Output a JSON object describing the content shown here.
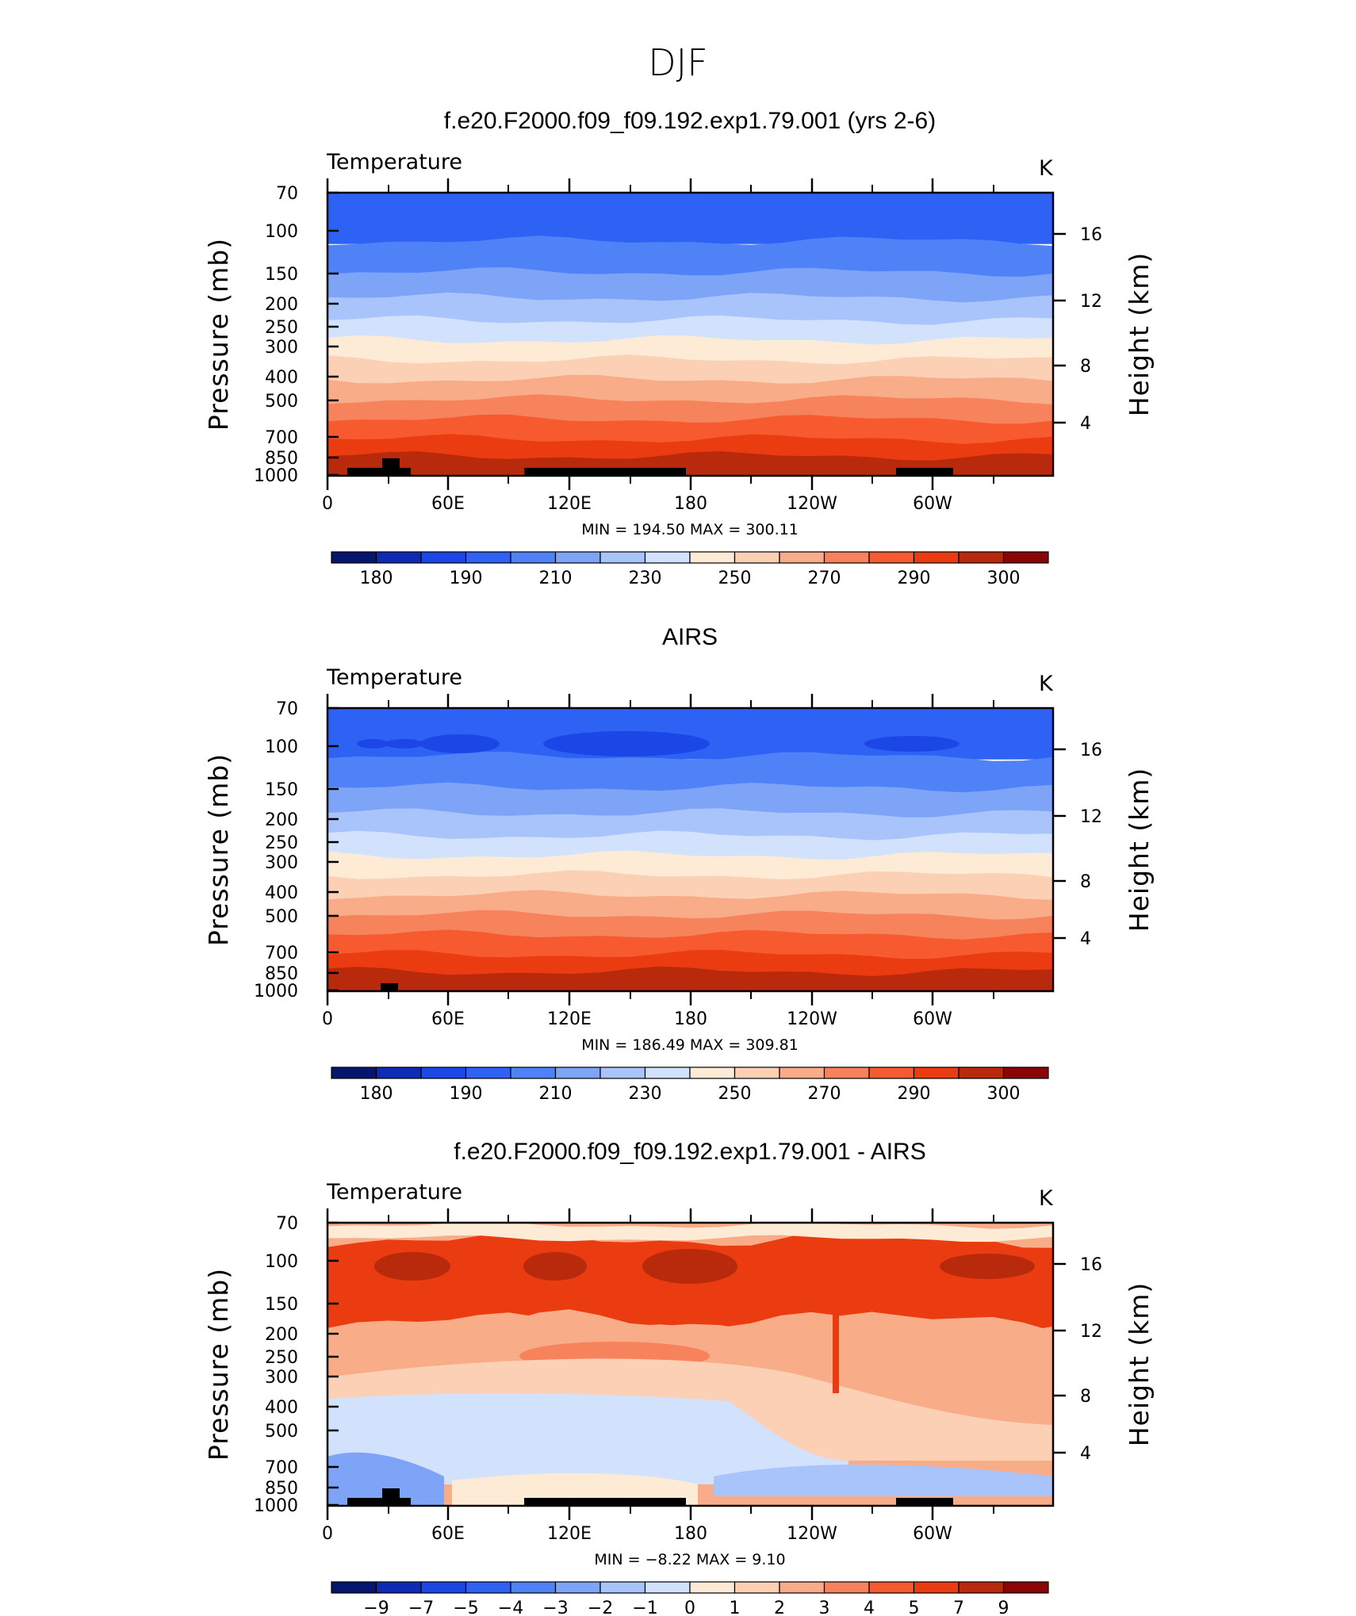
{
  "page": {
    "title": "DJF"
  },
  "colors": {
    "temp_palette": [
      "#06156e",
      "#0f2bb5",
      "#1b47e6",
      "#2d62f5",
      "#4f82f7",
      "#7ea4f8",
      "#a9c4fb",
      "#d2e2fd",
      "#fdebd6",
      "#fcd0b4",
      "#f9ac88",
      "#f7835c",
      "#f65a2e",
      "#ea3c10",
      "#b82a0b",
      "#8a0505"
    ],
    "diff_palette": [
      "#06156e",
      "#0f2bb5",
      "#1b47e6",
      "#2d62f5",
      "#4f82f7",
      "#7ea4f8",
      "#a9c4fb",
      "#d2e2fd",
      "#fdebd6",
      "#fcd0b4",
      "#f9ac88",
      "#f7835c",
      "#f65a2e",
      "#ea3c10",
      "#b82a0b",
      "#8a0505"
    ],
    "topography": "#000000"
  },
  "chart_data": [
    {
      "type": "contour",
      "title": "f.e20.F2000.f09_f09.192.exp1.79.001 (yrs 2-6)",
      "variable_label": "Temperature",
      "units": "K",
      "ylabel": "Pressure (mb)",
      "ylabel_right": "Height (km)",
      "stats": "MIN  =  194.50   MAX  =  300.11",
      "x_ticks": [
        "0",
        "60E",
        "120E",
        "180",
        "120W",
        "60W"
      ],
      "y_ticks": [
        "70",
        "100",
        "150",
        "200",
        "250",
        "300",
        "400",
        "500",
        "700",
        "850",
        "1000"
      ],
      "y_ticks_right": [
        "16",
        "12",
        "8",
        "4"
      ],
      "colorbar_labels": [
        "180",
        "190",
        "210",
        "230",
        "250",
        "270",
        "290",
        "300"
      ],
      "bands_from_top": [
        3,
        4,
        5,
        6,
        7,
        8,
        9,
        10,
        11,
        12,
        13,
        14
      ],
      "min": 194.5,
      "max": 300.11
    },
    {
      "type": "contour",
      "title": "AIRS",
      "variable_label": "Temperature",
      "units": "K",
      "ylabel": "Pressure (mb)",
      "ylabel_right": "Height (km)",
      "stats": "MIN  =  186.49   MAX  =  309.81",
      "x_ticks": [
        "0",
        "60E",
        "120E",
        "180",
        "120W",
        "60W"
      ],
      "y_ticks": [
        "70",
        "100",
        "150",
        "200",
        "250",
        "300",
        "400",
        "500",
        "700",
        "850",
        "1000"
      ],
      "y_ticks_right": [
        "16",
        "12",
        "8",
        "4"
      ],
      "colorbar_labels": [
        "180",
        "190",
        "210",
        "230",
        "250",
        "270",
        "290",
        "300"
      ],
      "bands_from_top": [
        3,
        4,
        5,
        6,
        7,
        8,
        9,
        10,
        11,
        12,
        13,
        14
      ],
      "min": 186.49,
      "max": 309.81
    },
    {
      "type": "contour",
      "title": "f.e20.F2000.f09_f09.192.exp1.79.001 - AIRS",
      "variable_label": "Temperature",
      "units": "K",
      "ylabel": "Pressure (mb)",
      "ylabel_right": "Height (km)",
      "stats": "MIN  =   −8.22   MAX  =     9.10",
      "x_ticks": [
        "0",
        "60E",
        "120E",
        "180",
        "120W",
        "60W"
      ],
      "y_ticks": [
        "70",
        "100",
        "150",
        "200",
        "250",
        "300",
        "400",
        "500",
        "700",
        "850",
        "1000"
      ],
      "y_ticks_right": [
        "16",
        "12",
        "8",
        "4"
      ],
      "colorbar_labels": [
        "−9",
        "−7",
        "−5",
        "−4",
        "−3",
        "−2",
        "−1",
        "0",
        "1",
        "2",
        "3",
        "4",
        "5",
        "7",
        "9"
      ],
      "min": -8.22,
      "max": 9.1
    }
  ]
}
